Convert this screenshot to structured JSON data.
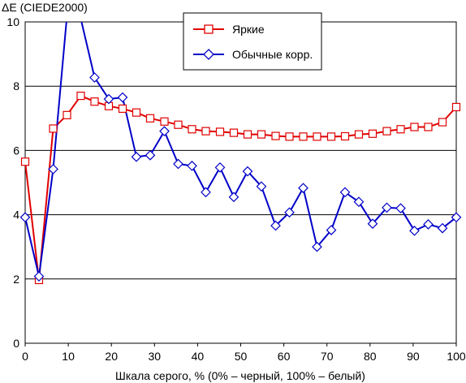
{
  "chart_data": {
    "type": "line",
    "title": "",
    "ylabel": "ΔE (CIEDE2000)",
    "xlabel": "Шкала серого, % (0% – черный, 100% – белый)",
    "xlim": [
      0,
      100
    ],
    "ylim": [
      0,
      10
    ],
    "x_ticks": [
      0,
      10,
      20,
      30,
      40,
      50,
      60,
      70,
      80,
      90,
      100
    ],
    "y_ticks": [
      0,
      2,
      4,
      6,
      8,
      10
    ],
    "grid": "horizontal",
    "legend_position": "top-center",
    "series": [
      {
        "name": "Яркие",
        "color": "#e00000",
        "marker": "square",
        "x": [
          0,
          3.2,
          6.5,
          9.7,
          12.9,
          16.1,
          19.4,
          22.6,
          25.8,
          29,
          32.3,
          35.5,
          38.7,
          41.9,
          45.2,
          48.4,
          51.6,
          54.8,
          58.1,
          61.3,
          64.5,
          67.7,
          71,
          74.2,
          77.4,
          80.6,
          83.9,
          87.1,
          90.3,
          93.5,
          96.8,
          100
        ],
        "values": [
          5.65,
          1.97,
          6.68,
          7.1,
          7.7,
          7.52,
          7.38,
          7.3,
          7.18,
          7.0,
          6.9,
          6.8,
          6.66,
          6.6,
          6.58,
          6.55,
          6.5,
          6.5,
          6.45,
          6.43,
          6.43,
          6.43,
          6.43,
          6.44,
          6.5,
          6.52,
          6.6,
          6.66,
          6.73,
          6.73,
          6.88,
          7.35
        ]
      },
      {
        "name": "Обычные корр.",
        "color": "#0000c8",
        "marker": "diamond",
        "x": [
          0,
          3.2,
          6.5,
          9.7,
          12.9,
          16.1,
          19.4,
          22.6,
          25.8,
          29,
          32.3,
          35.5,
          38.7,
          41.9,
          45.2,
          48.4,
          51.6,
          54.8,
          58.1,
          61.3,
          64.5,
          67.7,
          71,
          74.2,
          77.4,
          80.6,
          83.9,
          87.1,
          90.3,
          93.5,
          96.8,
          100
        ],
        "values": [
          3.92,
          2.08,
          5.42,
          10.2,
          10.1,
          8.27,
          7.6,
          7.65,
          5.8,
          5.85,
          6.6,
          5.58,
          5.52,
          4.7,
          5.47,
          4.55,
          5.35,
          4.88,
          3.66,
          4.07,
          4.83,
          3.0,
          3.52,
          4.7,
          4.4,
          3.72,
          4.22,
          4.2,
          3.5,
          3.7,
          3.58,
          3.92
        ]
      }
    ]
  }
}
